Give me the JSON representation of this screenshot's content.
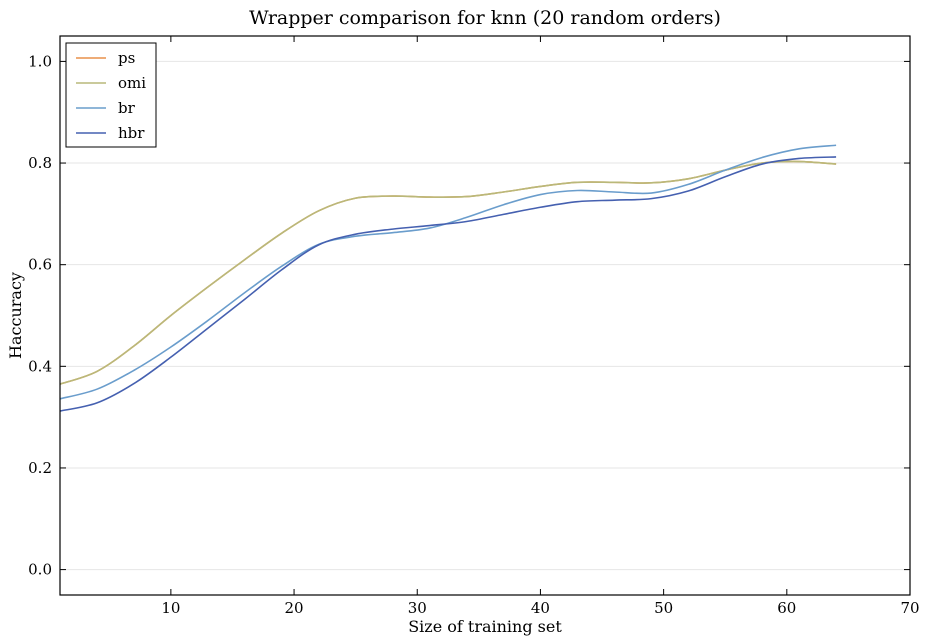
{
  "chart_data": {
    "type": "line",
    "title": "Wrapper comparison for knn (20 random orders)",
    "xlabel": "Size of training set",
    "ylabel": "Haccuracy",
    "xlim": [
      1,
      70
    ],
    "ylim": [
      -0.05,
      1.05
    ],
    "xticks": [
      10,
      20,
      30,
      40,
      50,
      60,
      70
    ],
    "yticks": [
      0.0,
      0.2,
      0.4,
      0.6,
      0.8,
      1.0
    ],
    "ytick_labels": [
      "0.0",
      "0.2",
      "0.4",
      "0.6",
      "0.8",
      "1.0"
    ],
    "grid": "horizontal",
    "legend_position": "top-left",
    "series": [
      {
        "name": "ps",
        "color": "#e8914a",
        "x": [
          1,
          4,
          7,
          10,
          13,
          16,
          19,
          22,
          25,
          28,
          31,
          34,
          37,
          40,
          43,
          46,
          49,
          52,
          55,
          58,
          61,
          64
        ],
        "y": [
          0.365,
          0.39,
          0.44,
          0.5,
          0.556,
          0.61,
          0.662,
          0.706,
          0.731,
          0.735,
          0.733,
          0.734,
          0.743,
          0.754,
          0.762,
          0.762,
          0.761,
          0.769,
          0.786,
          0.8,
          0.803,
          0.798
        ]
      },
      {
        "name": "omi",
        "color": "#b9b97a",
        "x": [
          1,
          4,
          7,
          10,
          13,
          16,
          19,
          22,
          25,
          28,
          31,
          34,
          37,
          40,
          43,
          46,
          49,
          52,
          55,
          58,
          61,
          64
        ],
        "y": [
          0.365,
          0.39,
          0.44,
          0.5,
          0.556,
          0.61,
          0.662,
          0.706,
          0.731,
          0.735,
          0.733,
          0.734,
          0.743,
          0.754,
          0.762,
          0.762,
          0.761,
          0.769,
          0.786,
          0.8,
          0.803,
          0.798
        ]
      },
      {
        "name": "br",
        "color": "#6a9dcc",
        "x": [
          1,
          4,
          7,
          10,
          13,
          16,
          19,
          22,
          25,
          28,
          31,
          34,
          37,
          40,
          43,
          46,
          49,
          52,
          55,
          58,
          61,
          64
        ],
        "y": [
          0.336,
          0.355,
          0.392,
          0.438,
          0.49,
          0.545,
          0.597,
          0.64,
          0.656,
          0.663,
          0.672,
          0.693,
          0.718,
          0.738,
          0.746,
          0.743,
          0.741,
          0.758,
          0.786,
          0.811,
          0.828,
          0.835
        ]
      },
      {
        "name": "hbr",
        "color": "#4560b0",
        "x": [
          1,
          4,
          7,
          10,
          13,
          16,
          19,
          22,
          25,
          28,
          31,
          34,
          37,
          40,
          43,
          46,
          49,
          52,
          55,
          58,
          61,
          64
        ],
        "y": [
          0.312,
          0.328,
          0.366,
          0.418,
          0.475,
          0.532,
          0.59,
          0.639,
          0.66,
          0.67,
          0.677,
          0.685,
          0.699,
          0.713,
          0.724,
          0.727,
          0.73,
          0.745,
          0.773,
          0.798,
          0.809,
          0.812
        ]
      }
    ]
  }
}
